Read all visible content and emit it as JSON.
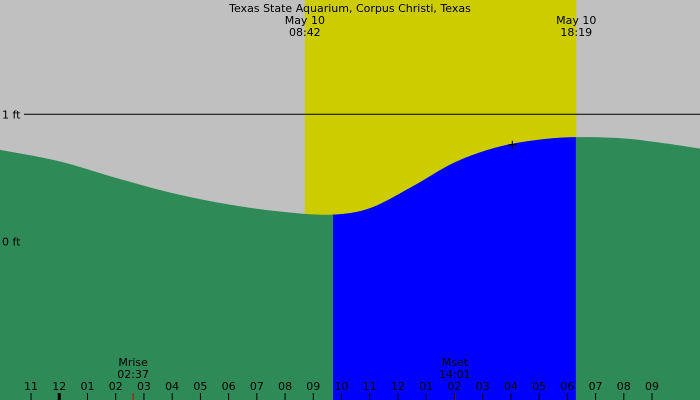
{
  "title": "Texas State Aquarium, Corpus Christi, Texas",
  "colors": {
    "background": "#c0c0c0",
    "daylight": "#cccc00",
    "tide_fill": "#2e8b57",
    "highlight_fill": "#0000ff",
    "reference_line": "#000000",
    "moon_tick": "#cc0000"
  },
  "sun_events": [
    {
      "date": "May 10",
      "time": "08:42",
      "hour": 8.7
    },
    {
      "date": "May 10",
      "time": "18:19",
      "hour": 18.3167
    }
  ],
  "moon_events": [
    {
      "label": "Mrise",
      "time": "02:37",
      "hour": 2.6167
    },
    {
      "label": "Mset",
      "time": "14:01",
      "hour": 14.0167
    }
  ],
  "chart_data": {
    "type": "area",
    "y_unit": "ft",
    "y_ticks": [
      {
        "label": "1 ft",
        "value": 1
      },
      {
        "label": "0 ft",
        "value": 0
      }
    ],
    "reference_line_value": 1,
    "x_range_hours": [
      -2.1,
      22.7
    ],
    "y_range_ft": [
      -1.25,
      1.9
    ],
    "x_tick_labels": [
      {
        "label": "11",
        "hour": -1
      },
      {
        "label": "12",
        "hour": 0
      },
      {
        "label": "01",
        "hour": 1
      },
      {
        "label": "02",
        "hour": 2
      },
      {
        "label": "03",
        "hour": 3
      },
      {
        "label": "04",
        "hour": 4
      },
      {
        "label": "05",
        "hour": 5
      },
      {
        "label": "06",
        "hour": 6
      },
      {
        "label": "07",
        "hour": 7
      },
      {
        "label": "08",
        "hour": 8
      },
      {
        "label": "09",
        "hour": 9
      },
      {
        "label": "10",
        "hour": 10
      },
      {
        "label": "11",
        "hour": 11
      },
      {
        "label": "12",
        "hour": 12
      },
      {
        "label": "01",
        "hour": 13
      },
      {
        "label": "02",
        "hour": 14
      },
      {
        "label": "03",
        "hour": 15
      },
      {
        "label": "04",
        "hour": 16
      },
      {
        "label": "05",
        "hour": 17
      },
      {
        "label": "06",
        "hour": 18
      },
      {
        "label": "07",
        "hour": 19
      },
      {
        "label": "08",
        "hour": 20
      },
      {
        "label": "09",
        "hour": 21
      }
    ],
    "tide_series": [
      {
        "hour": -2.1,
        "ft": 0.72
      },
      {
        "hour": 0,
        "ft": 0.63
      },
      {
        "hour": 2,
        "ft": 0.5
      },
      {
        "hour": 4,
        "ft": 0.38
      },
      {
        "hour": 6,
        "ft": 0.29
      },
      {
        "hour": 8,
        "ft": 0.23
      },
      {
        "hour": 9.7,
        "ft": 0.21
      },
      {
        "hour": 11,
        "ft": 0.26
      },
      {
        "hour": 12.5,
        "ft": 0.43
      },
      {
        "hour": 14,
        "ft": 0.62
      },
      {
        "hour": 15.5,
        "ft": 0.74
      },
      {
        "hour": 17,
        "ft": 0.8
      },
      {
        "hour": 18.3,
        "ft": 0.82
      },
      {
        "hour": 20,
        "ft": 0.81
      },
      {
        "hour": 21.5,
        "ft": 0.77
      },
      {
        "hour": 22.7,
        "ft": 0.73
      }
    ],
    "highlight_range_hours": [
      9.7,
      18.3
    ],
    "marker": {
      "hour": 16.05,
      "ft": 0.76
    }
  }
}
